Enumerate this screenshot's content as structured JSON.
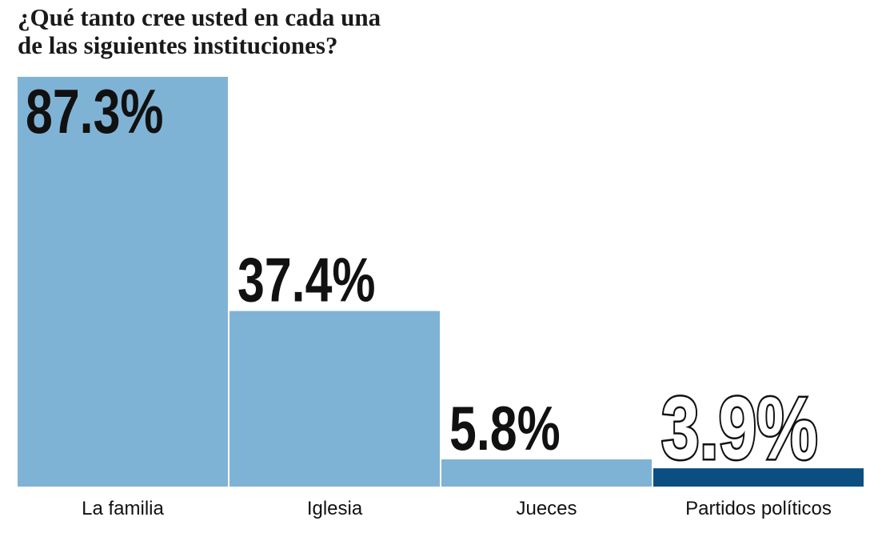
{
  "chart_data": {
    "type": "bar",
    "title": "¿Qué tanto cree usted en cada una de las siguientes instituciones?",
    "title_lines": [
      "¿Qué tanto cree usted en cada una",
      "de las siguientes instituciones?"
    ],
    "categories": [
      "La familia",
      "Iglesia",
      "Jueces",
      "Partidos políticos"
    ],
    "values": [
      87.3,
      37.4,
      5.8,
      3.9
    ],
    "value_labels": [
      "87.3%",
      "37.4%",
      "5.8%",
      "3.9%"
    ],
    "unit": "%",
    "xlabel": "",
    "ylabel": "",
    "ylim": [
      0,
      87.3
    ],
    "grid": false,
    "legend": "none",
    "colors": [
      "#7fb3d5",
      "#7fb3d5",
      "#7fb3d5",
      "#0b4f82"
    ],
    "highlight_index": 3,
    "label_styles": [
      "solid",
      "solid",
      "solid",
      "outline"
    ]
  }
}
